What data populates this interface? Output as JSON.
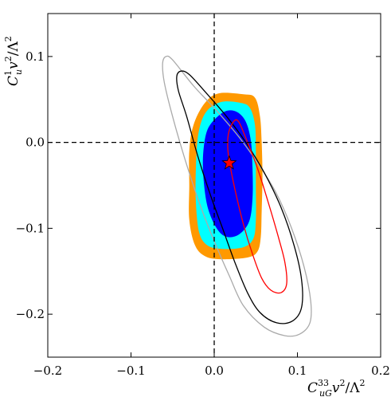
{
  "chart_data": {
    "type": "contour",
    "xlabel": {
      "base": "C",
      "sup": "33",
      "sub": "uG",
      "rest": "v",
      "rest_sup": "2",
      "div": "/Λ",
      "div_sup": "2"
    },
    "ylabel": {
      "base": "C",
      "sup": "1",
      "sub": "u",
      "rest": "v",
      "rest_sup": "2",
      "div": "/Λ",
      "div_sup": "2"
    },
    "xlim": [
      -0.2,
      0.2
    ],
    "ylim": [
      -0.25,
      0.15
    ],
    "xticks": [
      -0.2,
      -0.1,
      0.0,
      0.1,
      0.2
    ],
    "xtick_labels": [
      "−0.2",
      "−0.1",
      "0.0",
      "0.1",
      "0.2"
    ],
    "yticks": [
      -0.2,
      -0.1,
      0.0,
      0.1
    ],
    "ytick_labels": [
      "−0.2",
      "−0.1",
      "0.0",
      "0.1"
    ],
    "reference_lines": {
      "x": 0.0,
      "y": 0.0,
      "style": "dashed",
      "color": "#000000"
    },
    "best_fit": {
      "x": 0.018,
      "y": -0.024,
      "marker": "star",
      "color": "#ff0000"
    },
    "regions": [
      {
        "kind": "filled",
        "color": "#ff9900",
        "points": [
          [
            0.035,
            0.056
          ],
          [
            0.049,
            0.052
          ],
          [
            0.055,
            0.03
          ],
          [
            0.057,
            0.0
          ],
          [
            0.058,
            -0.04
          ],
          [
            0.057,
            -0.08
          ],
          [
            0.056,
            -0.11
          ],
          [
            0.052,
            -0.127
          ],
          [
            0.04,
            -0.134
          ],
          [
            0.01,
            -0.136
          ],
          [
            -0.01,
            -0.133
          ],
          [
            -0.023,
            -0.12
          ],
          [
            -0.03,
            -0.09
          ],
          [
            -0.03,
            -0.05
          ],
          [
            -0.03,
            -0.01
          ],
          [
            -0.025,
            0.02
          ],
          [
            -0.012,
            0.045
          ],
          [
            0.005,
            0.057
          ]
        ]
      },
      {
        "kind": "filled",
        "color": "#00ffff",
        "points": [
          [
            0.032,
            0.046
          ],
          [
            0.043,
            0.04
          ],
          [
            0.049,
            0.02
          ],
          [
            0.05,
            -0.01
          ],
          [
            0.05,
            -0.05
          ],
          [
            0.05,
            -0.09
          ],
          [
            0.047,
            -0.112
          ],
          [
            0.035,
            -0.122
          ],
          [
            0.01,
            -0.124
          ],
          [
            -0.008,
            -0.12
          ],
          [
            -0.018,
            -0.105
          ],
          [
            -0.022,
            -0.07
          ],
          [
            -0.022,
            -0.03
          ],
          [
            -0.019,
            0.01
          ],
          [
            -0.01,
            0.035
          ],
          [
            0.008,
            0.047
          ]
        ]
      },
      {
        "kind": "filled",
        "color": "#0000ff",
        "points": [
          [
            0.028,
            0.035
          ],
          [
            0.038,
            0.024
          ],
          [
            0.044,
            0.002
          ],
          [
            0.046,
            -0.03
          ],
          [
            0.046,
            -0.065
          ],
          [
            0.042,
            -0.092
          ],
          [
            0.03,
            -0.107
          ],
          [
            0.015,
            -0.11
          ],
          [
            0.003,
            -0.1
          ],
          [
            -0.008,
            -0.075
          ],
          [
            -0.013,
            -0.04
          ],
          [
            -0.013,
            -0.01
          ],
          [
            -0.008,
            0.015
          ],
          [
            0.004,
            0.03
          ],
          [
            0.016,
            0.037
          ]
        ]
      },
      {
        "kind": "contour",
        "color": "#aaaaaa",
        "points": [
          [
            -0.062,
            0.092
          ],
          [
            -0.058,
            0.1
          ],
          [
            -0.05,
            0.096
          ],
          [
            -0.025,
            0.066
          ],
          [
            0.0,
            0.04
          ],
          [
            0.03,
            0.006
          ],
          [
            0.055,
            -0.028
          ],
          [
            0.075,
            -0.06
          ],
          [
            0.093,
            -0.1
          ],
          [
            0.108,
            -0.145
          ],
          [
            0.116,
            -0.185
          ],
          [
            0.115,
            -0.21
          ],
          [
            0.103,
            -0.223
          ],
          [
            0.085,
            -0.225
          ],
          [
            0.06,
            -0.215
          ],
          [
            0.035,
            -0.19
          ],
          [
            0.018,
            -0.155
          ],
          [
            0.0,
            -0.115
          ],
          [
            -0.018,
            -0.07
          ],
          [
            -0.035,
            -0.02
          ],
          [
            -0.05,
            0.03
          ],
          [
            -0.06,
            0.07
          ]
        ]
      },
      {
        "kind": "contour",
        "color": "#000000",
        "points": [
          [
            -0.045,
            0.077
          ],
          [
            -0.04,
            0.083
          ],
          [
            -0.03,
            0.079
          ],
          [
            -0.01,
            0.058
          ],
          [
            0.015,
            0.03
          ],
          [
            0.038,
            0.0
          ],
          [
            0.06,
            -0.035
          ],
          [
            0.08,
            -0.075
          ],
          [
            0.096,
            -0.12
          ],
          [
            0.105,
            -0.16
          ],
          [
            0.105,
            -0.192
          ],
          [
            0.094,
            -0.208
          ],
          [
            0.075,
            -0.21
          ],
          [
            0.055,
            -0.198
          ],
          [
            0.04,
            -0.175
          ],
          [
            0.025,
            -0.14
          ],
          [
            0.01,
            -0.1
          ],
          [
            -0.005,
            -0.06
          ],
          [
            -0.02,
            -0.015
          ],
          [
            -0.033,
            0.03
          ],
          [
            -0.043,
            0.06
          ]
        ]
      },
      {
        "kind": "contour",
        "color": "#ff0000",
        "points": [
          [
            0.024,
            0.025
          ],
          [
            0.03,
            0.023
          ],
          [
            0.04,
            0.0
          ],
          [
            0.052,
            -0.03
          ],
          [
            0.065,
            -0.07
          ],
          [
            0.077,
            -0.11
          ],
          [
            0.085,
            -0.14
          ],
          [
            0.087,
            -0.165
          ],
          [
            0.08,
            -0.175
          ],
          [
            0.068,
            -0.172
          ],
          [
            0.057,
            -0.158
          ],
          [
            0.046,
            -0.13
          ],
          [
            0.035,
            -0.095
          ],
          [
            0.025,
            -0.055
          ],
          [
            0.017,
            -0.015
          ],
          [
            0.017,
            0.01
          ]
        ]
      }
    ]
  }
}
